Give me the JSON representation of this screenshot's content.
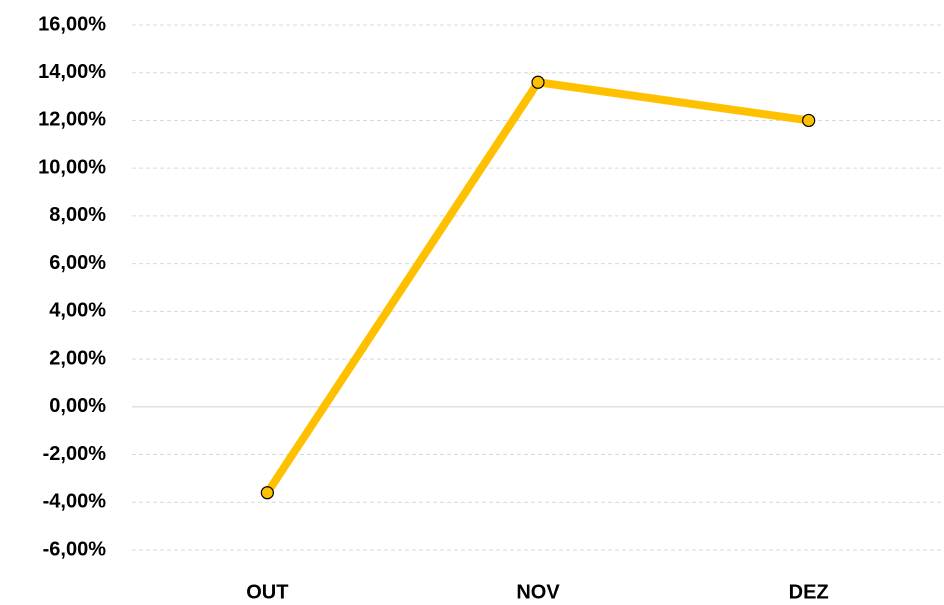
{
  "chart_data": {
    "type": "line",
    "categories": [
      "OUT",
      "NOV",
      "DEZ"
    ],
    "values": [
      -3.6,
      13.6,
      12.0
    ],
    "color": "#FFC000",
    "ylim": [
      -6,
      16
    ],
    "yticks": [
      {
        "value": -6,
        "label": "-6,00%"
      },
      {
        "value": -4,
        "label": "-4,00%"
      },
      {
        "value": -2,
        "label": "-2,00%"
      },
      {
        "value": 0,
        "label": "0,00%"
      },
      {
        "value": 2,
        "label": "2,00%"
      },
      {
        "value": 4,
        "label": "4,00%"
      },
      {
        "value": 6,
        "label": "6,00%"
      },
      {
        "value": 8,
        "label": "8,00%"
      },
      {
        "value": 10,
        "label": "10,00%"
      },
      {
        "value": 12,
        "label": "12,00%"
      },
      {
        "value": 14,
        "label": "14,00%"
      },
      {
        "value": 16,
        "label": "16,00%"
      }
    ],
    "grid": true
  }
}
